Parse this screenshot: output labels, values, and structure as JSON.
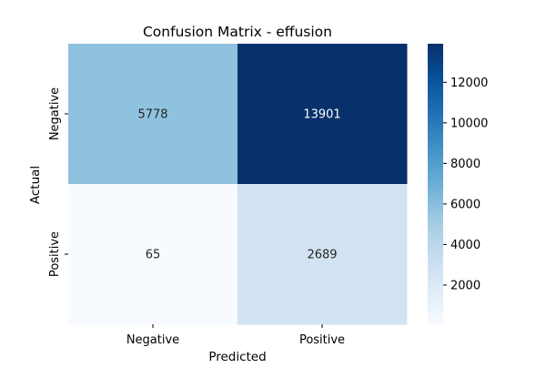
{
  "chart_data": {
    "type": "heatmap",
    "title": "Confusion Matrix - effusion",
    "xlabel": "Predicted",
    "ylabel": "Actual",
    "x_categories": [
      "Negative",
      "Positive"
    ],
    "y_categories": [
      "Negative",
      "Positive"
    ],
    "values": [
      [
        5778,
        13901
      ],
      [
        65,
        2689
      ]
    ],
    "colormap": "Blues",
    "colorbar": {
      "ticks": [
        2000,
        4000,
        6000,
        8000,
        10000,
        12000
      ],
      "tick_labels": [
        "2000",
        "4000",
        "6000",
        "8000",
        "10000",
        "12000"
      ]
    },
    "cell_text_colors": {
      "light": "#262626",
      "dark": "#ffffff"
    }
  }
}
